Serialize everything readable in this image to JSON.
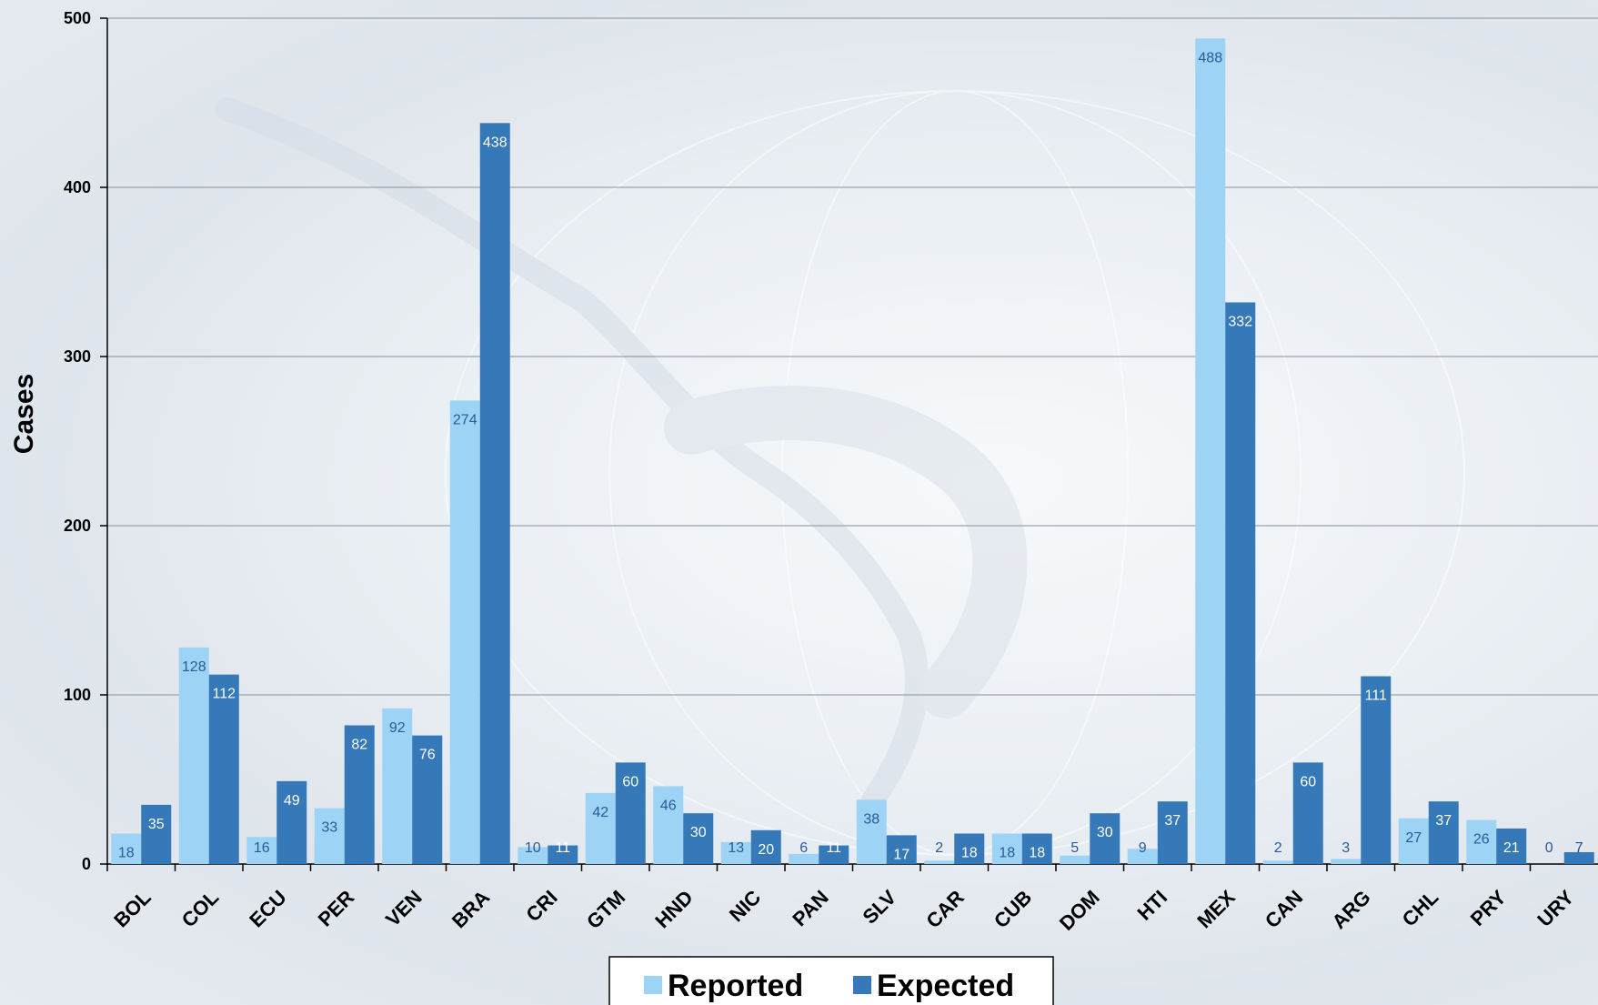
{
  "chart_data": {
    "type": "bar",
    "categories": [
      "BOL",
      "COL",
      "ECU",
      "PER",
      "VEN",
      "BRA",
      "CRI",
      "GTM",
      "HND",
      "NIC",
      "PAN",
      "SLV",
      "CAR",
      "CUB",
      "DOM",
      "HTI",
      "MEX",
      "CAN",
      "ARG",
      "CHL",
      "PRY",
      "URY"
    ],
    "series": [
      {
        "name": "Reported",
        "color": "#9dd4f5",
        "label_color": "#2a5a9a",
        "values": [
          18,
          128,
          16,
          33,
          92,
          274,
          10,
          42,
          46,
          13,
          6,
          38,
          2,
          18,
          5,
          9,
          488,
          2,
          3,
          27,
          26,
          0
        ]
      },
      {
        "name": "Expected",
        "color": "#3579b8",
        "label_color": "#ffffff",
        "values": [
          35,
          112,
          49,
          82,
          76,
          438,
          11,
          60,
          30,
          20,
          11,
          17,
          18,
          18,
          30,
          37,
          332,
          60,
          111,
          37,
          21,
          7
        ]
      }
    ],
    "ylabel": "Cases",
    "xlabel": "",
    "ylim": [
      0,
      500
    ],
    "yticks": [
      0,
      100,
      200,
      300,
      400,
      500
    ],
    "grid": true,
    "legend_position": "bottom-center"
  }
}
